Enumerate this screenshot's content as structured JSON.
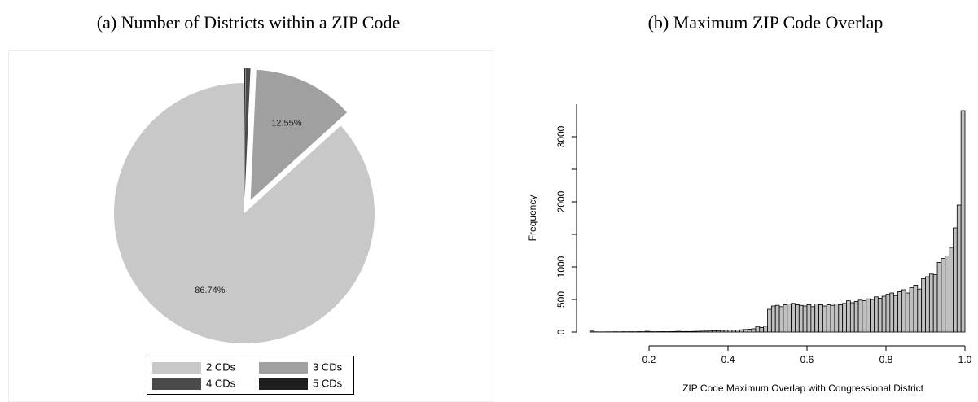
{
  "chart_data": [
    {
      "type": "pie",
      "title": "(a) Number of Districts within a ZIP Code",
      "categories": [
        "2 CDs",
        "3 CDs",
        "4 CDs",
        "5 CDs"
      ],
      "values": [
        86.74,
        12.55,
        0.6,
        0.11
      ],
      "value_labels": [
        "86.74%",
        "12.55%",
        null,
        null
      ],
      "colors": [
        "#c8c8c8",
        "#a0a0a0",
        "#4a4a4a",
        "#1e1e1e"
      ],
      "explode": [
        false,
        true,
        true,
        true
      ],
      "legend": "bottom"
    },
    {
      "type": "histogram",
      "title": "(b) Maximum ZIP Code Overlap",
      "xlabel": "ZIP Code Maximum Overlap with Congressional District",
      "ylabel": "Frequency",
      "bins": [
        0.05,
        0.06,
        0.07,
        0.08,
        0.09,
        0.1,
        0.11,
        0.12,
        0.13,
        0.14,
        0.15,
        0.16,
        0.17,
        0.18,
        0.19,
        0.2,
        0.21,
        0.22,
        0.23,
        0.24,
        0.25,
        0.26,
        0.27,
        0.28,
        0.29,
        0.3,
        0.31,
        0.32,
        0.33,
        0.34,
        0.35,
        0.36,
        0.37,
        0.38,
        0.39,
        0.4,
        0.41,
        0.42,
        0.43,
        0.44,
        0.45,
        0.46,
        0.47,
        0.48,
        0.49,
        0.5,
        0.51,
        0.52,
        0.53,
        0.54,
        0.55,
        0.56,
        0.57,
        0.58,
        0.59,
        0.6,
        0.61,
        0.62,
        0.63,
        0.64,
        0.65,
        0.66,
        0.67,
        0.68,
        0.69,
        0.7,
        0.71,
        0.72,
        0.73,
        0.74,
        0.75,
        0.76,
        0.77,
        0.78,
        0.79,
        0.8,
        0.81,
        0.82,
        0.83,
        0.84,
        0.85,
        0.86,
        0.87,
        0.88,
        0.89,
        0.9,
        0.91,
        0.92,
        0.93,
        0.94,
        0.95,
        0.96,
        0.97,
        0.98,
        0.99,
        1.0
      ],
      "values": [
        15,
        3,
        2,
        2,
        3,
        3,
        4,
        3,
        5,
        4,
        5,
        4,
        6,
        5,
        12,
        6,
        5,
        6,
        7,
        6,
        7,
        8,
        12,
        8,
        9,
        8,
        10,
        12,
        14,
        15,
        16,
        18,
        22,
        25,
        28,
        30,
        28,
        32,
        35,
        40,
        45,
        50,
        85,
        70,
        90,
        350,
        400,
        410,
        390,
        420,
        430,
        440,
        420,
        410,
        400,
        420,
        390,
        430,
        420,
        400,
        420,
        410,
        430,
        420,
        440,
        480,
        450,
        470,
        490,
        480,
        510,
        500,
        540,
        520,
        550,
        580,
        600,
        560,
        620,
        650,
        600,
        680,
        720,
        660,
        820,
        850,
        890,
        880,
        1070,
        1130,
        1170,
        1300,
        1600,
        1950,
        3400
      ],
      "color": "#c0c0c0",
      "xlim": [
        0.05,
        1.0
      ],
      "ylim": [
        0,
        3500
      ],
      "xticks": [
        0.2,
        0.4,
        0.6,
        0.8,
        {
          "value": 1.0,
          "label": "1.0"
        }
      ],
      "yticks": [
        0,
        500,
        1000,
        2000,
        3000
      ],
      "yticks_unlabeled": [
        1500,
        2500
      ]
    }
  ]
}
